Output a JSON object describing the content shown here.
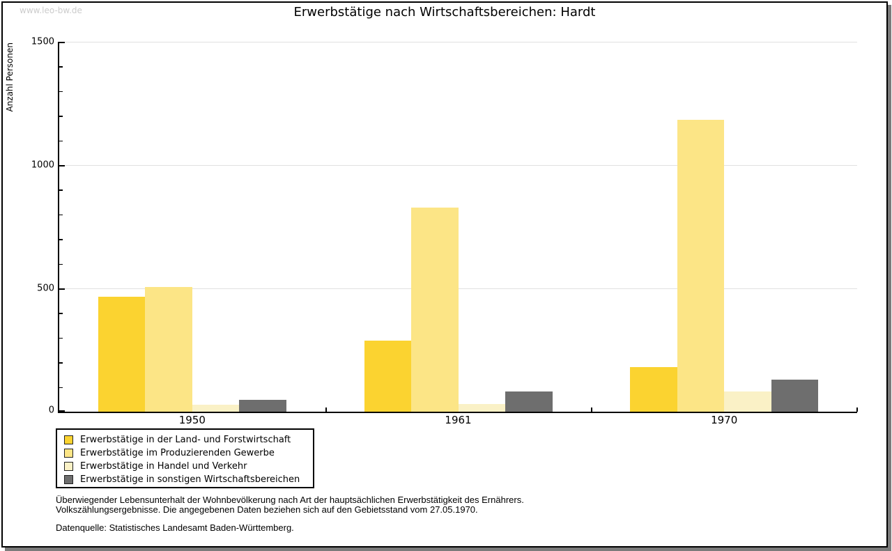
{
  "watermark": "www.leo-bw.de",
  "title": "Erwerbstätige nach Wirtschaftsbereichen: Hardt",
  "chart_data": {
    "type": "bar",
    "title": "Erwerbstätige nach Wirtschaftsbereichen: Hardt",
    "xlabel": "",
    "ylabel": "Anzahl Personen",
    "categories": [
      "1950",
      "1961",
      "1970"
    ],
    "series": [
      {
        "name": "Erwerbstätige in der Land- und Forstwirtschaft",
        "color": "#fbd330",
        "values": [
          467,
          289,
          182
        ]
      },
      {
        "name": "Erwerbstätige im Produzierenden Gewerbe",
        "color": "#fce586",
        "values": [
          506,
          828,
          1184
        ]
      },
      {
        "name": "Erwerbstätige in Handel und Verkehr",
        "color": "#faf1c6",
        "values": [
          29,
          32,
          81
        ]
      },
      {
        "name": "Erwerbstätige in sonstigen Wirtschaftsbereichen",
        "color": "#6e6e6e",
        "values": [
          47,
          81,
          129
        ]
      }
    ],
    "ylim": [
      0,
      1500
    ],
    "yticks": [
      0,
      500,
      1000,
      1500
    ],
    "minor_tick_step": 100,
    "grid": true,
    "grid_color": "#e0e0e0",
    "legend_position": "bottom-left"
  },
  "captions": {
    "line1": "Überwiegender Lebensunterhalt der Wohnbevölkerung nach Art der hauptsächlichen Erwerbstätigkeit des Ernährers.",
    "line2": "Volkszählungsergebnisse. Die angegebenen Daten beziehen sich auf den Gebietsstand vom 27.05.1970.",
    "source": "Datenquelle: Statistisches Landesamt Baden-Württemberg."
  }
}
